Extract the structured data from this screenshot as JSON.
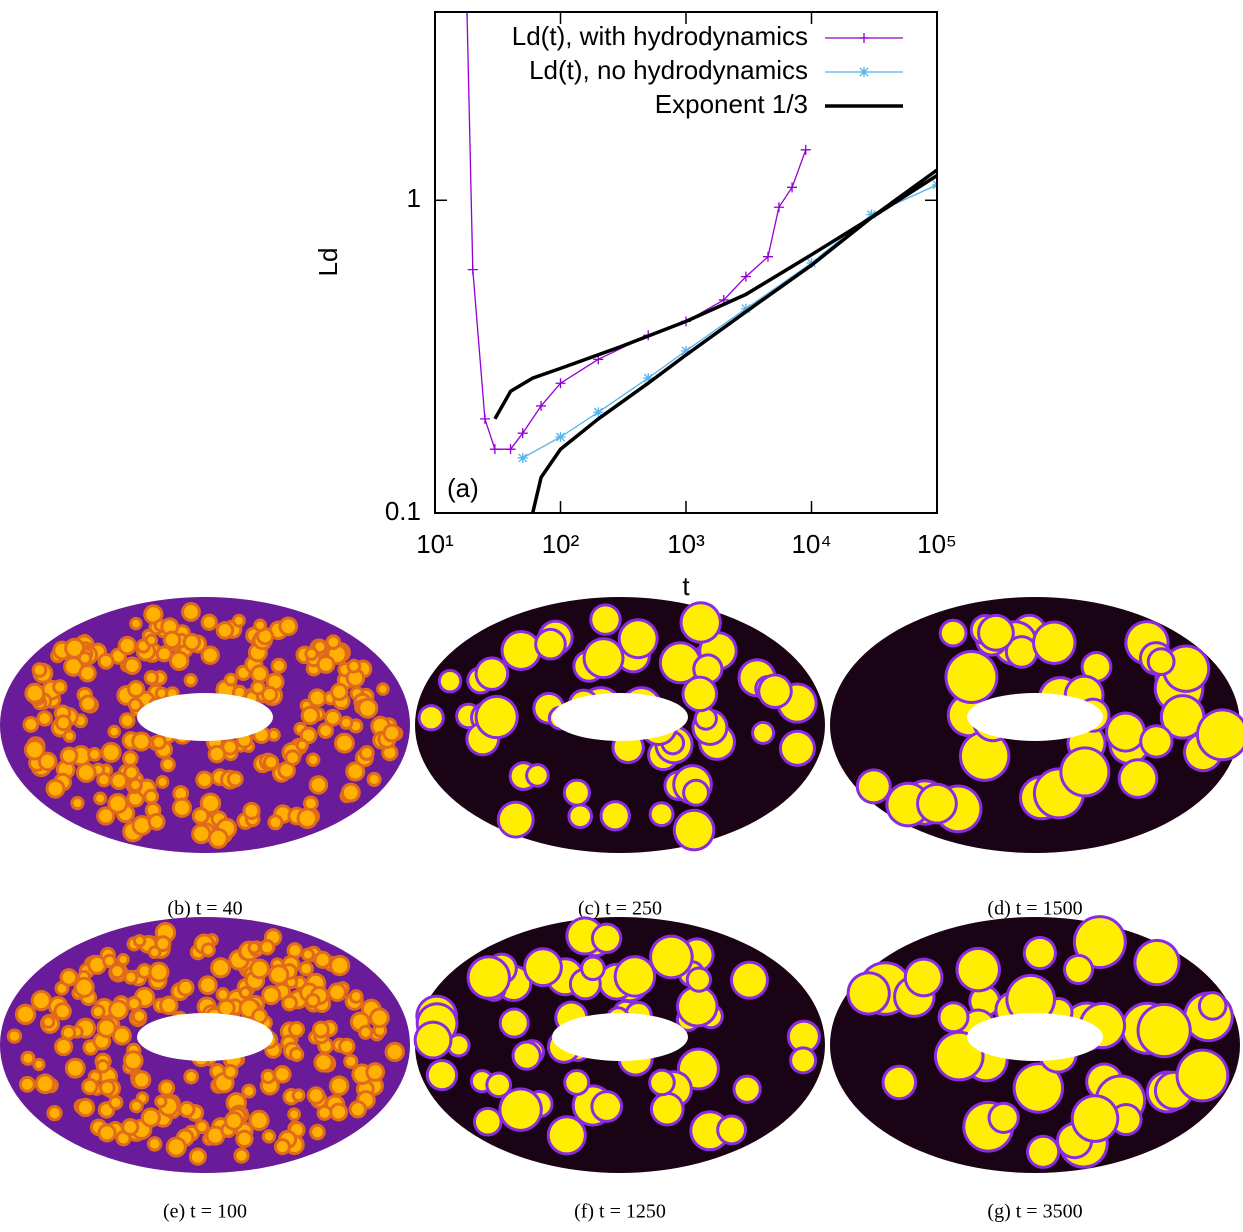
{
  "chart_data": {
    "type": "line",
    "xlabel": "t",
    "ylabel": "Ld",
    "annotation": "(a)",
    "xscale": "log",
    "yscale": "log",
    "xlim": [
      10,
      100000
    ],
    "ylim": [
      0.1,
      4
    ],
    "xticks": [
      {
        "value": 10,
        "label": "10¹"
      },
      {
        "value": 100,
        "label": "10²"
      },
      {
        "value": 1000,
        "label": "10³"
      },
      {
        "value": 10000,
        "label": "10⁴"
      },
      {
        "value": 100000,
        "label": "10⁵"
      }
    ],
    "yticks": [
      0.1,
      1
    ],
    "legend": "top-right",
    "series": [
      {
        "name": "Ld(t), with hydrodynamics",
        "color": "#9400d3",
        "marker": "plus",
        "x": [
          18,
          20,
          25,
          30,
          40,
          50,
          70,
          100,
          200,
          500,
          1000,
          2000,
          3000,
          4500,
          5500,
          7000,
          9000
        ],
        "values": [
          4,
          0.6,
          0.2,
          0.16,
          0.16,
          0.18,
          0.22,
          0.26,
          0.31,
          0.37,
          0.41,
          0.48,
          0.57,
          0.66,
          0.95,
          1.1,
          1.45
        ]
      },
      {
        "name": "Ld(t), no hydrodynamics",
        "color": "#56b4e9",
        "marker": "star",
        "x": [
          50,
          100,
          200,
          500,
          1000,
          3000,
          10000,
          30000,
          100000
        ],
        "values": [
          0.15,
          0.175,
          0.21,
          0.27,
          0.33,
          0.45,
          0.63,
          0.9,
          1.12
        ]
      },
      {
        "name": "Exponent 1/3",
        "color": "#000000",
        "marker": "none",
        "x": [
          30,
          40,
          60,
          100,
          300,
          1000,
          3000,
          10000,
          30000,
          100000,
          null,
          60,
          70,
          100,
          200,
          500,
          1000,
          3000,
          10000,
          30000,
          100000
        ],
        "values": [
          0.2,
          0.245,
          0.27,
          0.29,
          0.34,
          0.41,
          0.5,
          0.67,
          0.88,
          1.25,
          null,
          0.1,
          0.13,
          0.16,
          0.2,
          0.26,
          0.32,
          0.44,
          0.62,
          0.88,
          1.2
        ]
      }
    ]
  },
  "panels": [
    {
      "caption": "(b) t = 40"
    },
    {
      "caption": "(c) t = 250"
    },
    {
      "caption": "(d) t = 1500"
    },
    {
      "caption": "(e) t = 100"
    },
    {
      "caption": "(f) t = 1250"
    },
    {
      "caption": "(g) t = 3500"
    }
  ]
}
